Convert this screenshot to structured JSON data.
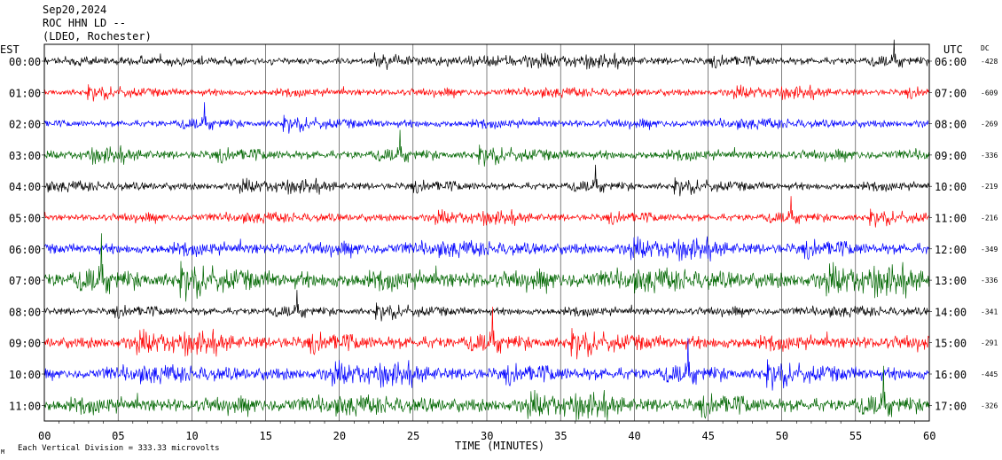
{
  "header": {
    "date": "Sep20,2024",
    "station": "ROC HHN LD --",
    "network": "(LDEO, Rochester)"
  },
  "left_axis_label": "EST",
  "right_axis_label": "UTC",
  "dc_label": "DC",
  "x_axis_label": "TIME (MINUTES)",
  "footer_mark": "M",
  "footer_scale": "Each Vertical Division =  333.33 microvolts",
  "colors": {
    "black": "#000000",
    "red": "#ff0000",
    "blue": "#0000ff",
    "green": "#006600",
    "grid": "#000000"
  },
  "chart_data": {
    "type": "line",
    "title": "Sep20,2024 ROC HHN LD -- (LDEO, Rochester)",
    "xlabel": "TIME (MINUTES)",
    "xlim": [
      0,
      60
    ],
    "x_ticks": [
      "00",
      "05",
      "10",
      "15",
      "20",
      "25",
      "30",
      "35",
      "40",
      "45",
      "50",
      "55",
      "60"
    ],
    "grid": true,
    "series": [
      {
        "est": "00:00",
        "utc": "06:00",
        "dc": "-428",
        "color": "black",
        "amp": 0.6
      },
      {
        "est": "01:00",
        "utc": "07:00",
        "dc": "-609",
        "color": "red",
        "amp": 0.55
      },
      {
        "est": "02:00",
        "utc": "08:00",
        "dc": "-269",
        "color": "blue",
        "amp": 0.6
      },
      {
        "est": "03:00",
        "utc": "09:00",
        "dc": "-336",
        "color": "green",
        "amp": 0.7
      },
      {
        "est": "04:00",
        "utc": "10:00",
        "dc": "-219",
        "color": "black",
        "amp": 0.6
      },
      {
        "est": "05:00",
        "utc": "11:00",
        "dc": "-216",
        "color": "red",
        "amp": 0.6
      },
      {
        "est": "06:00",
        "utc": "12:00",
        "dc": "-349",
        "color": "blue",
        "amp": 0.9
      },
      {
        "est": "07:00",
        "utc": "13:00",
        "dc": "-336",
        "color": "green",
        "amp": 1.3
      },
      {
        "est": "08:00",
        "utc": "14:00",
        "dc": "-341",
        "color": "black",
        "amp": 0.6
      },
      {
        "est": "09:00",
        "utc": "15:00",
        "dc": "-291",
        "color": "red",
        "amp": 1.0
      },
      {
        "est": "10:00",
        "utc": "16:00",
        "dc": "-445",
        "color": "blue",
        "amp": 1.0
      },
      {
        "est": "11:00",
        "utc": "17:00",
        "dc": "-326",
        "color": "green",
        "amp": 1.1
      }
    ]
  }
}
